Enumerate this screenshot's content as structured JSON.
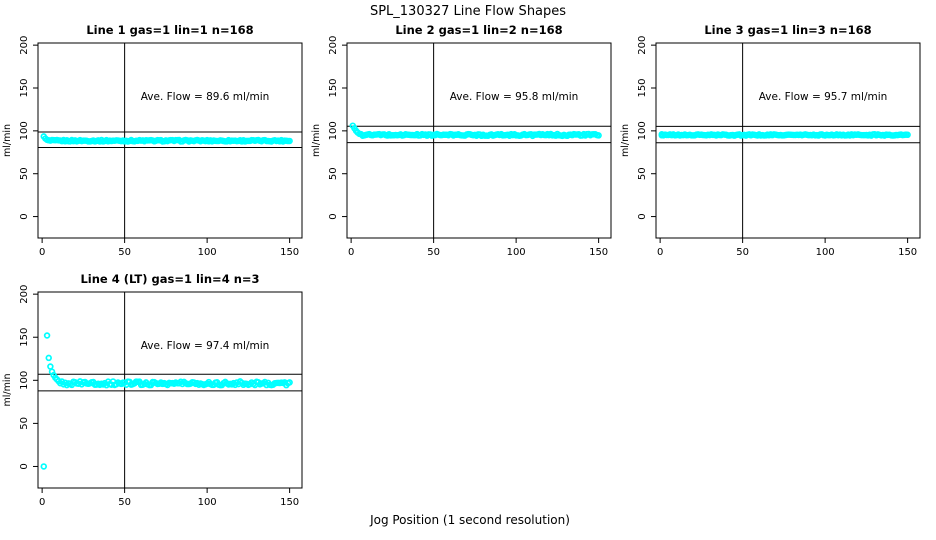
{
  "figure": {
    "title": "SPL_130327  Line Flow Shapes",
    "xlabel": "Jog Position (1 second resolution)",
    "background_color": "#ffffff",
    "axis_color": "#000000",
    "point_color": "#00ffff"
  },
  "chart_data": {
    "type": "scatter",
    "title": "SPL_130327  Line Flow Shapes",
    "xlabel": "Jog Position (1 second resolution)",
    "ylabel": "ml/min",
    "x_ticks": [
      0,
      50,
      100,
      150
    ],
    "y_ticks": [
      0,
      50,
      100,
      150,
      200
    ],
    "xlim": [
      -2.5,
      157.5
    ],
    "ylim": [
      -25,
      202.5
    ],
    "grid": false,
    "legend": false,
    "panels": [
      {
        "grid": {
          "row": 0,
          "col": 0
        },
        "title": "Line 1 gas=1 lin=1 n=168",
        "line": 1,
        "gas": 1,
        "lin": 1,
        "n": 168,
        "ave_flow": 89.6,
        "annotation": "Ave. Flow =  89.6  ml/min",
        "vline_x": 50,
        "hlines": [
          98.6,
          80.6
        ],
        "transient_points": [
          [
            1,
            93.5
          ],
          [
            2,
            91.0
          ],
          [
            3,
            89.5
          ]
        ],
        "steady": {
          "x_from": 4,
          "x_to": 150,
          "y": 88.5,
          "noise": 0.9
        }
      },
      {
        "grid": {
          "row": 0,
          "col": 1
        },
        "title": "Line 2 gas=1 lin=2 n=168",
        "line": 2,
        "gas": 1,
        "lin": 2,
        "n": 168,
        "ave_flow": 95.8,
        "annotation": "Ave. Flow =  95.8  ml/min",
        "vline_x": 50,
        "hlines": [
          105.4,
          86.2
        ],
        "transient_points": [
          [
            1,
            106
          ],
          [
            2,
            103
          ],
          [
            3,
            100
          ],
          [
            4,
            98
          ],
          [
            5,
            96.5
          ]
        ],
        "steady": {
          "x_from": 6,
          "x_to": 150,
          "y": 95.3,
          "noise": 1.1
        }
      },
      {
        "grid": {
          "row": 0,
          "col": 2
        },
        "title": "Line 3 gas=1 lin=3 n=168",
        "line": 3,
        "gas": 1,
        "lin": 3,
        "n": 168,
        "ave_flow": 95.7,
        "annotation": "Ave. Flow =  95.7  ml/min",
        "vline_x": 50,
        "hlines": [
          105.3,
          86.1
        ],
        "transient_points": [
          [
            1,
            96
          ]
        ],
        "steady": {
          "x_from": 1,
          "x_to": 150,
          "y": 95.2,
          "noise": 0.8
        }
      },
      {
        "grid": {
          "row": 1,
          "col": 0
        },
        "title": "Line 4 (LT) gas=1 lin=4 n=3",
        "line": 4,
        "lt": true,
        "gas": 1,
        "lin": 4,
        "n": 3,
        "ave_flow": 97.4,
        "annotation": "Ave. Flow =  97.4  ml/min",
        "vline_x": 50,
        "hlines": [
          107.1,
          87.7
        ],
        "transient_points": [
          [
            1,
            0
          ],
          [
            3,
            152
          ],
          [
            4,
            126
          ],
          [
            5,
            116
          ],
          [
            6,
            110
          ],
          [
            7,
            106
          ],
          [
            8,
            103
          ],
          [
            9,
            101
          ],
          [
            10,
            99
          ]
        ],
        "steady": {
          "x_from": 11,
          "x_to": 150,
          "y": 96.5,
          "noise": 2.3
        }
      }
    ]
  }
}
